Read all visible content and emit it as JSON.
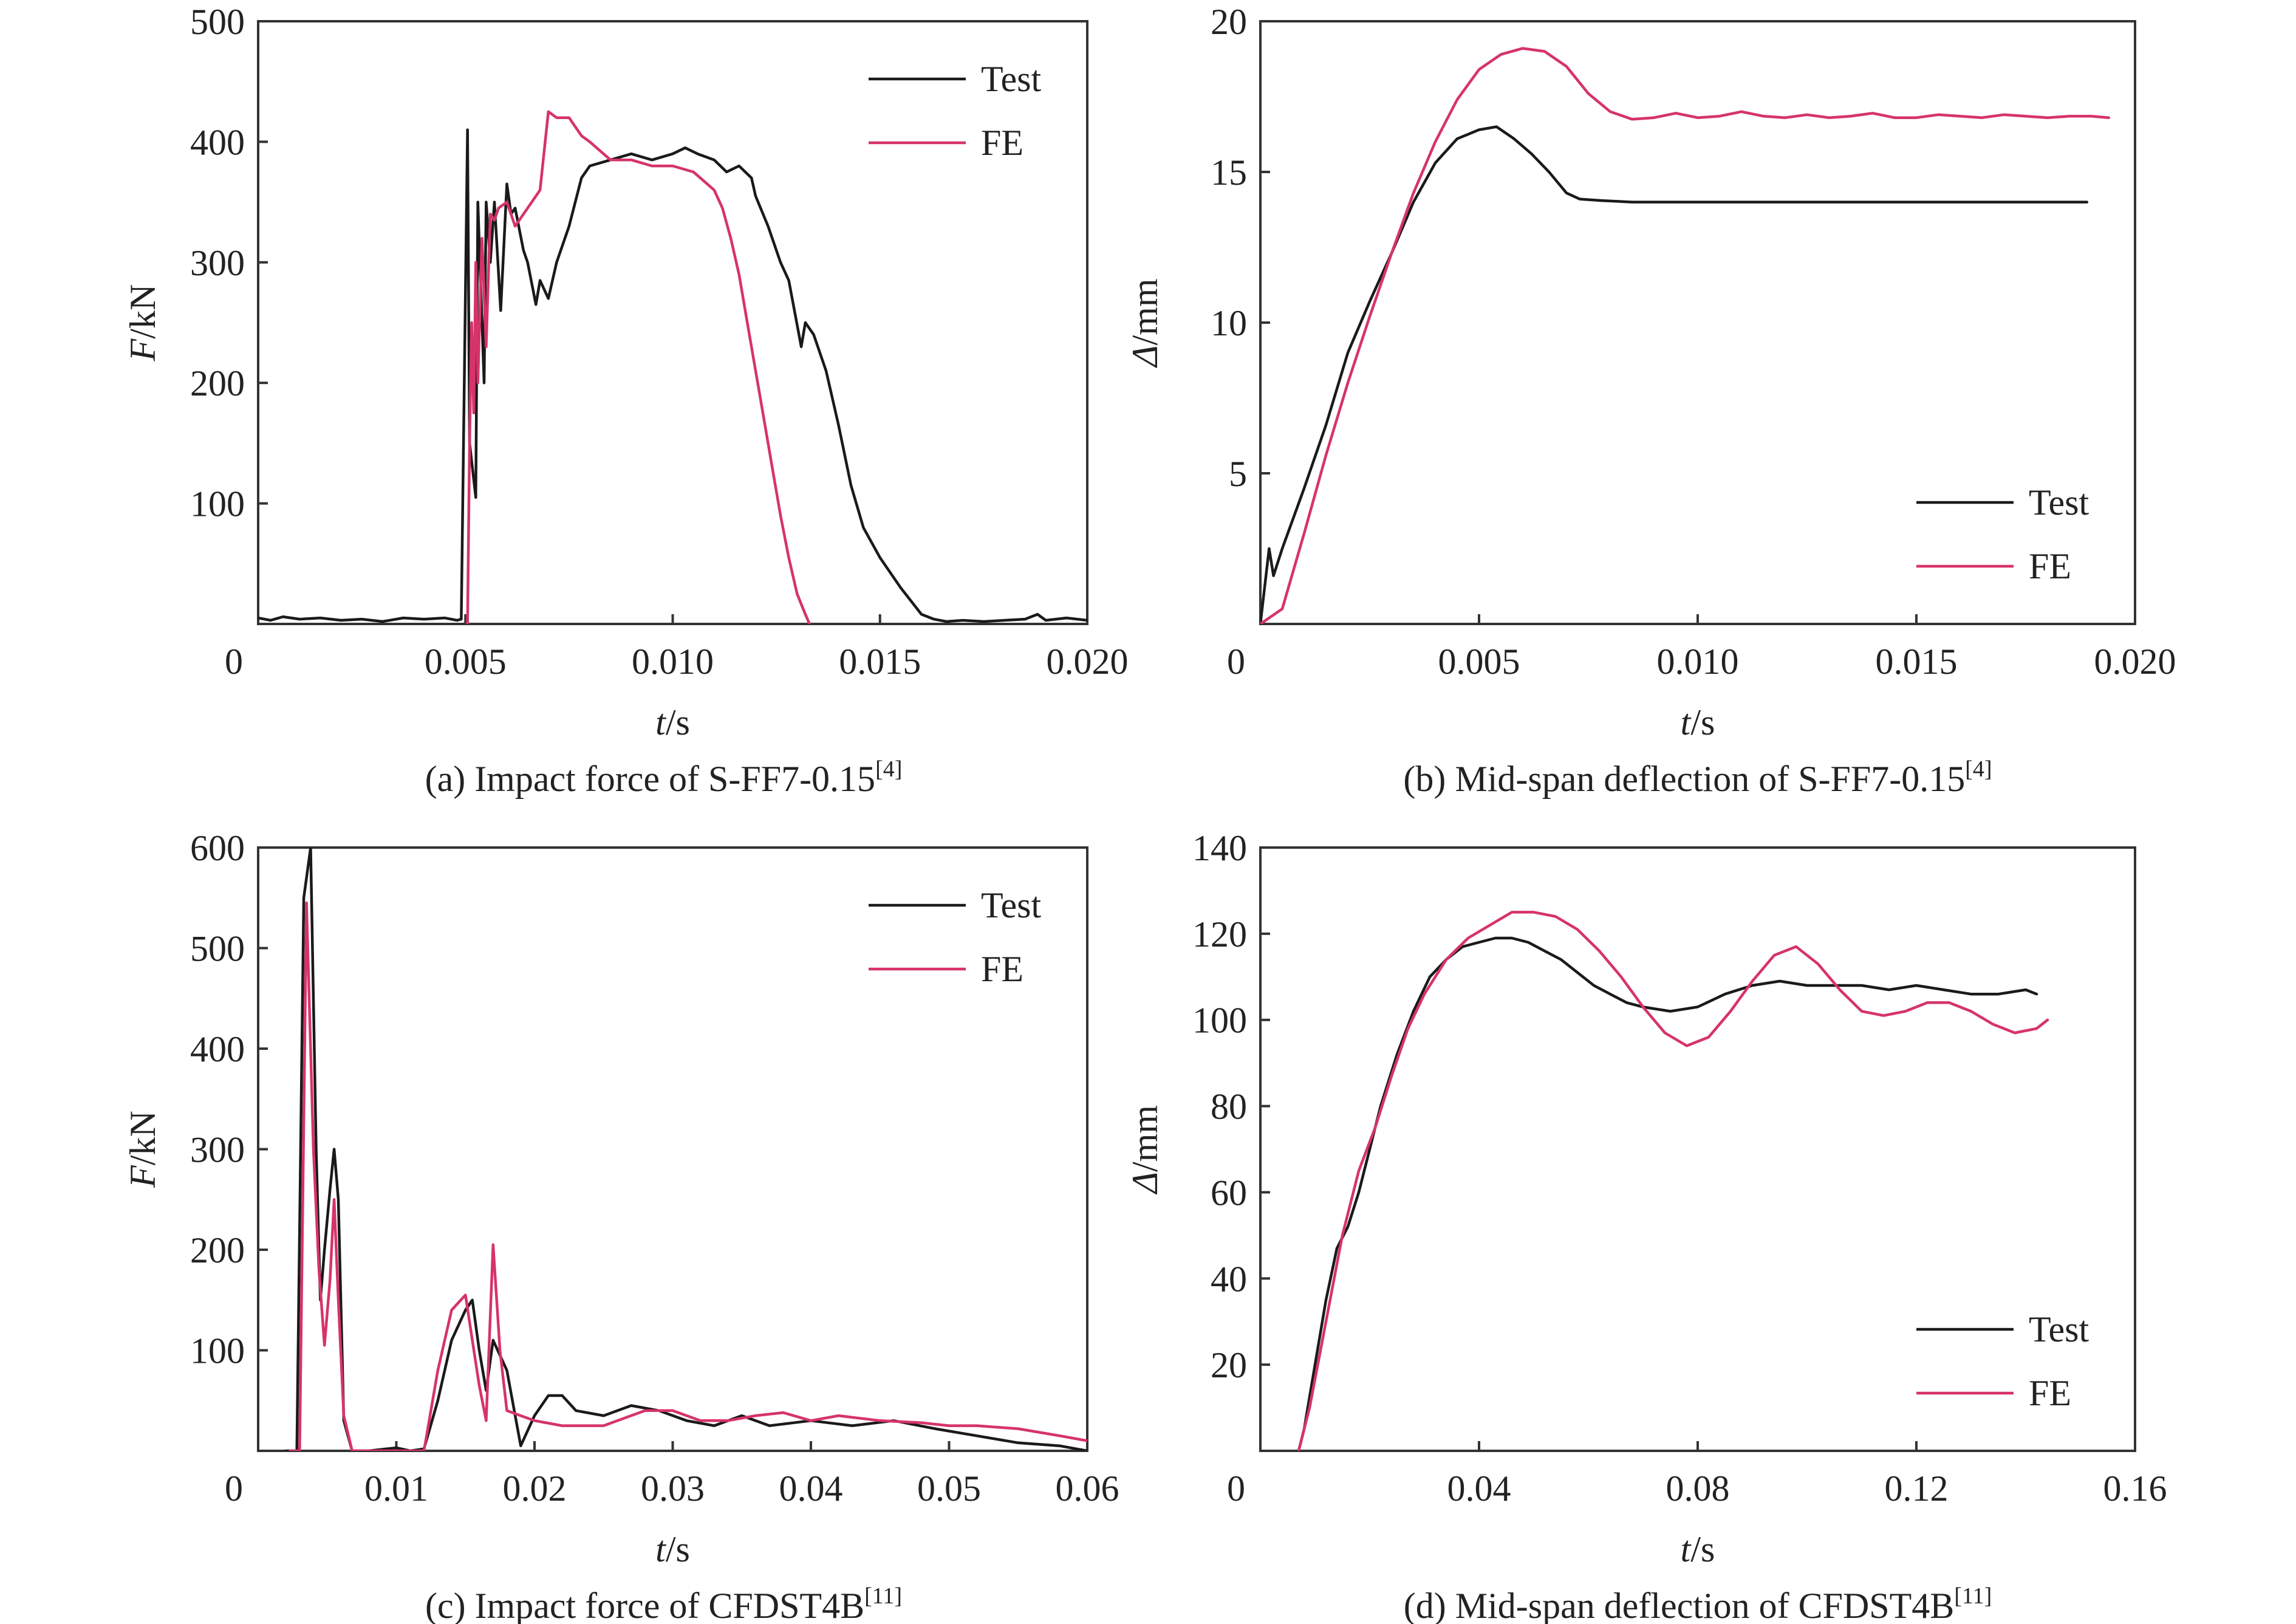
{
  "colors": {
    "test": "#1a1a1a",
    "fe": "#d6336c",
    "axis": "#333333"
  },
  "chart_data": [
    {
      "id": "a",
      "type": "line",
      "caption": "(a) Impact force of S-FF7-0.15",
      "caption_ref": "[4]",
      "xlabel_italic": "t",
      "xlabel_unit": "/s",
      "ylabel_italic": "F",
      "ylabel_unit": "/kN",
      "xlim": [
        0,
        0.02
      ],
      "ylim": [
        0,
        500
      ],
      "xticks": [
        0,
        0.005,
        0.01,
        0.015,
        0.02
      ],
      "xtick_labels": [
        "0",
        "0.005",
        "0.010",
        "0.015",
        "0.020"
      ],
      "yticks": [
        100,
        200,
        300,
        400,
        500
      ],
      "ytick_labels": [
        "100",
        "200",
        "300",
        "400",
        "500"
      ],
      "legend_position": "top-right",
      "series": [
        {
          "name": "Test",
          "color_key": "test",
          "x": [
            0,
            0.0003,
            0.0006,
            0.001,
            0.0015,
            0.002,
            0.0025,
            0.003,
            0.0035,
            0.004,
            0.0045,
            0.0048,
            0.0049,
            0.00505,
            0.0051,
            0.00525,
            0.0053,
            0.00545,
            0.0055,
            0.0056,
            0.0057,
            0.00585,
            0.006,
            0.0061,
            0.0062,
            0.0064,
            0.0065,
            0.0067,
            0.0068,
            0.007,
            0.0072,
            0.0075,
            0.0078,
            0.008,
            0.0085,
            0.009,
            0.0095,
            0.01,
            0.0103,
            0.0106,
            0.011,
            0.0113,
            0.0116,
            0.0119,
            0.012,
            0.0123,
            0.0126,
            0.0128,
            0.0131,
            0.0132,
            0.0134,
            0.0137,
            0.014,
            0.0143,
            0.0146,
            0.015,
            0.0155,
            0.016,
            0.0163,
            0.0166,
            0.017,
            0.0175,
            0.018,
            0.0185,
            0.0188,
            0.019,
            0.0195,
            0.02
          ],
          "y": [
            5,
            3,
            6,
            4,
            5,
            3,
            4,
            2,
            5,
            4,
            5,
            3,
            4,
            410,
            150,
            105,
            350,
            200,
            350,
            300,
            350,
            260,
            365,
            340,
            345,
            310,
            300,
            265,
            285,
            270,
            300,
            330,
            370,
            380,
            385,
            390,
            385,
            390,
            395,
            390,
            385,
            375,
            380,
            370,
            355,
            330,
            300,
            285,
            230,
            250,
            240,
            210,
            165,
            115,
            80,
            55,
            30,
            8,
            4,
            2,
            3,
            2,
            3,
            4,
            8,
            3,
            5,
            3
          ]
        },
        {
          "name": "FE",
          "color_key": "fe",
          "x": [
            0.00505,
            0.0051,
            0.00515,
            0.0052,
            0.00525,
            0.0053,
            0.0054,
            0.0055,
            0.0056,
            0.0057,
            0.0058,
            0.006,
            0.0062,
            0.0064,
            0.0066,
            0.0068,
            0.007,
            0.0072,
            0.0075,
            0.0078,
            0.008,
            0.0085,
            0.009,
            0.0095,
            0.01,
            0.0105,
            0.011,
            0.0112,
            0.0114,
            0.0116,
            0.0118,
            0.012,
            0.0122,
            0.0124,
            0.0126,
            0.0128,
            0.013,
            0.0132,
            0.0133
          ],
          "y": [
            0,
            150,
            250,
            175,
            300,
            200,
            320,
            230,
            340,
            335,
            345,
            350,
            330,
            340,
            350,
            360,
            425,
            420,
            420,
            405,
            400,
            385,
            385,
            380,
            380,
            375,
            360,
            345,
            320,
            290,
            250,
            210,
            170,
            130,
            90,
            55,
            25,
            8,
            0
          ]
        }
      ]
    },
    {
      "id": "b",
      "type": "line",
      "caption": "(b) Mid-span deflection of S-FF7-0.15",
      "caption_ref": "[4]",
      "xlabel_italic": "t",
      "xlabel_unit": "/s",
      "ylabel_italic": "Δ",
      "ylabel_unit": "/mm",
      "xlim": [
        0,
        0.02
      ],
      "ylim": [
        0,
        20
      ],
      "xticks": [
        0,
        0.005,
        0.01,
        0.015,
        0.02
      ],
      "xtick_labels": [
        "0",
        "0.005",
        "0.010",
        "0.015",
        "0.020"
      ],
      "yticks": [
        5,
        10,
        15,
        20
      ],
      "ytick_labels": [
        "5",
        "10",
        "15",
        "20"
      ],
      "legend_position": "bottom-right",
      "series": [
        {
          "name": "Test",
          "color_key": "test",
          "x": [
            0,
            0.0002,
            0.0003,
            0.0005,
            0.001,
            0.0015,
            0.002,
            0.0025,
            0.003,
            0.0035,
            0.004,
            0.0045,
            0.005,
            0.0054,
            0.0058,
            0.0062,
            0.0066,
            0.007,
            0.0073,
            0.0078,
            0.0085,
            0.01,
            0.012,
            0.014,
            0.016,
            0.018,
            0.0189
          ],
          "y": [
            0,
            2.5,
            1.6,
            2.5,
            4.5,
            6.6,
            9.0,
            10.7,
            12.3,
            14.0,
            15.3,
            16.1,
            16.4,
            16.5,
            16.1,
            15.6,
            15.0,
            14.3,
            14.1,
            14.05,
            14.0,
            14.0,
            14.0,
            14.0,
            14.0,
            14.0,
            14.0
          ]
        },
        {
          "name": "FE",
          "color_key": "fe",
          "x": [
            0,
            0.0005,
            0.001,
            0.0015,
            0.002,
            0.0025,
            0.003,
            0.0035,
            0.004,
            0.0045,
            0.005,
            0.0055,
            0.006,
            0.0065,
            0.007,
            0.0075,
            0.008,
            0.0085,
            0.009,
            0.0095,
            0.01,
            0.0105,
            0.011,
            0.0115,
            0.012,
            0.0125,
            0.013,
            0.0135,
            0.014,
            0.0145,
            0.015,
            0.0155,
            0.016,
            0.0165,
            0.017,
            0.0175,
            0.018,
            0.0185,
            0.019,
            0.0194
          ],
          "y": [
            0,
            0.5,
            3.0,
            5.6,
            8.0,
            10.2,
            12.3,
            14.3,
            16.0,
            17.4,
            18.4,
            18.9,
            19.1,
            19.0,
            18.5,
            17.6,
            17.0,
            16.75,
            16.8,
            16.95,
            16.8,
            16.85,
            17.0,
            16.85,
            16.8,
            16.9,
            16.8,
            16.85,
            16.95,
            16.8,
            16.8,
            16.9,
            16.85,
            16.8,
            16.9,
            16.85,
            16.8,
            16.85,
            16.85,
            16.8
          ]
        }
      ]
    },
    {
      "id": "c",
      "type": "line",
      "caption": "(c) Impact force of CFDST4B",
      "caption_ref": "[11]",
      "xlabel_italic": "t",
      "xlabel_unit": "/s",
      "ylabel_italic": "F",
      "ylabel_unit": "/kN",
      "xlim": [
        0,
        0.06
      ],
      "ylim": [
        0,
        600
      ],
      "xticks": [
        0,
        0.01,
        0.02,
        0.03,
        0.04,
        0.05,
        0.06
      ],
      "xtick_labels": [
        "0",
        "0.01",
        "0.02",
        "0.03",
        "0.04",
        "0.05",
        "0.06"
      ],
      "yticks": [
        100,
        200,
        300,
        400,
        500,
        600
      ],
      "ytick_labels": [
        "100",
        "200",
        "300",
        "400",
        "500",
        "600"
      ],
      "legend_position": "top-right",
      "series": [
        {
          "name": "Test",
          "color_key": "test",
          "x": [
            0.002,
            0.0028,
            0.0033,
            0.0038,
            0.0042,
            0.0045,
            0.0048,
            0.0052,
            0.0055,
            0.0058,
            0.0062,
            0.0068,
            0.008,
            0.01,
            0.011,
            0.012,
            0.013,
            0.014,
            0.015,
            0.0155,
            0.016,
            0.0165,
            0.017,
            0.018,
            0.019,
            0.02,
            0.021,
            0.022,
            0.023,
            0.025,
            0.027,
            0.029,
            0.031,
            0.033,
            0.035,
            0.037,
            0.04,
            0.043,
            0.046,
            0.049,
            0.052,
            0.055,
            0.058,
            0.06
          ],
          "y": [
            0,
            0,
            550,
            600,
            300,
            150,
            200,
            260,
            300,
            250,
            30,
            0,
            0,
            3,
            0,
            2,
            50,
            110,
            140,
            150,
            100,
            60,
            110,
            80,
            5,
            35,
            55,
            55,
            40,
            35,
            45,
            40,
            30,
            25,
            35,
            25,
            30,
            25,
            30,
            22,
            15,
            8,
            5,
            0
          ]
        },
        {
          "name": "FE",
          "color_key": "fe",
          "x": [
            0.0023,
            0.003,
            0.0035,
            0.004,
            0.0044,
            0.0048,
            0.0052,
            0.0055,
            0.0058,
            0.0062,
            0.0068,
            0.008,
            0.012,
            0.013,
            0.014,
            0.015,
            0.0155,
            0.016,
            0.0165,
            0.017,
            0.0175,
            0.018,
            0.019,
            0.02,
            0.022,
            0.025,
            0.028,
            0.03,
            0.032,
            0.034,
            0.036,
            0.038,
            0.04,
            0.042,
            0.045,
            0.048,
            0.05,
            0.052,
            0.055,
            0.058,
            0.06
          ],
          "y": [
            0,
            0,
            545,
            300,
            180,
            105,
            170,
            250,
            150,
            35,
            0,
            0,
            0,
            80,
            140,
            155,
            110,
            65,
            30,
            205,
            100,
            40,
            35,
            30,
            25,
            25,
            40,
            40,
            30,
            30,
            35,
            38,
            30,
            35,
            30,
            28,
            25,
            25,
            22,
            15,
            10
          ]
        }
      ]
    },
    {
      "id": "d",
      "type": "line",
      "caption": "(d) Mid-span deflection of CFDST4B",
      "caption_ref": "[11]",
      "xlabel_italic": "t",
      "xlabel_unit": "/s",
      "ylabel_italic": "Δ",
      "ylabel_unit": "/mm",
      "xlim": [
        0,
        0.16
      ],
      "ylim": [
        0,
        140
      ],
      "xticks": [
        0,
        0.04,
        0.08,
        0.12,
        0.16
      ],
      "xtick_labels": [
        "0",
        "0.04",
        "0.08",
        "0.12",
        "0.16"
      ],
      "yticks": [
        20,
        40,
        60,
        80,
        100,
        120,
        140
      ],
      "ytick_labels": [
        "20",
        "40",
        "60",
        "80",
        "100",
        "120",
        "140"
      ],
      "legend_position": "bottom-right",
      "series": [
        {
          "name": "Test",
          "color_key": "test",
          "x": [
            0.007,
            0.008,
            0.01,
            0.012,
            0.014,
            0.016,
            0.018,
            0.02,
            0.022,
            0.025,
            0.028,
            0.031,
            0.034,
            0.037,
            0.04,
            0.043,
            0.046,
            0.049,
            0.052,
            0.055,
            0.058,
            0.061,
            0.064,
            0.067,
            0.07,
            0.075,
            0.08,
            0.085,
            0.09,
            0.095,
            0.1,
            0.105,
            0.11,
            0.115,
            0.12,
            0.125,
            0.13,
            0.135,
            0.14,
            0.142
          ],
          "y": [
            0,
            5,
            20,
            35,
            47,
            52,
            60,
            70,
            80,
            92,
            102,
            110,
            114,
            117,
            118,
            119,
            119,
            118,
            116,
            114,
            111,
            108,
            106,
            104,
            103,
            102,
            103,
            106,
            108,
            109,
            108,
            108,
            108,
            107,
            108,
            107,
            106,
            106,
            107,
            106
          ]
        },
        {
          "name": "FE",
          "color_key": "fe",
          "x": [
            0.007,
            0.009,
            0.012,
            0.015,
            0.018,
            0.021,
            0.024,
            0.027,
            0.03,
            0.034,
            0.038,
            0.042,
            0.046,
            0.05,
            0.054,
            0.058,
            0.062,
            0.066,
            0.07,
            0.074,
            0.078,
            0.082,
            0.086,
            0.09,
            0.094,
            0.098,
            0.102,
            0.106,
            0.11,
            0.114,
            0.118,
            0.122,
            0.126,
            0.13,
            0.134,
            0.138,
            0.142,
            0.144
          ],
          "y": [
            0,
            10,
            30,
            50,
            65,
            75,
            87,
            98,
            106,
            114,
            119,
            122,
            125,
            125,
            124,
            121,
            116,
            110,
            103,
            97,
            94,
            96,
            102,
            109,
            115,
            117,
            113,
            107,
            102,
            101,
            102,
            104,
            104,
            102,
            99,
            97,
            98,
            100
          ]
        }
      ]
    }
  ]
}
